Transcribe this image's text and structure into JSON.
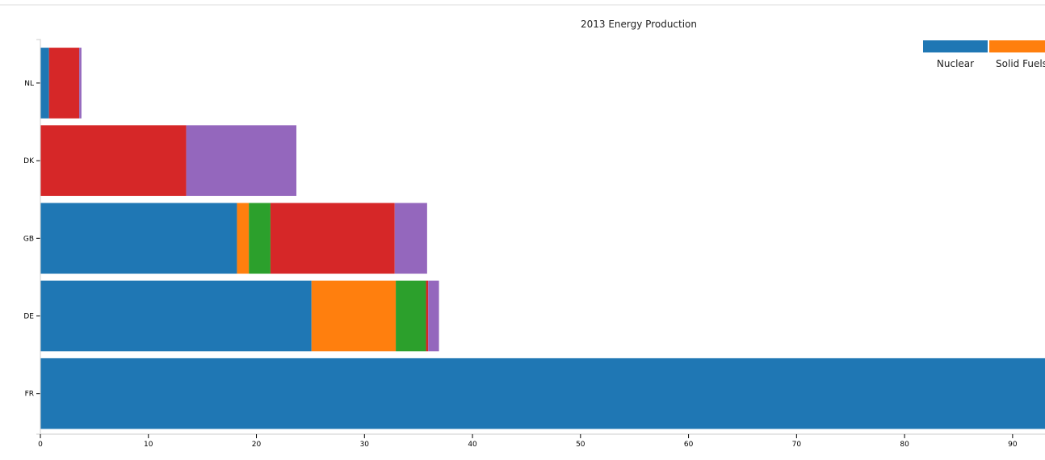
{
  "chart_data": {
    "type": "bar",
    "orientation": "horizontal",
    "stacked": true,
    "title": "2013 Energy Production",
    "categories": [
      "NL",
      "DK",
      "GB",
      "DE",
      "FR"
    ],
    "series": [
      {
        "name": "Nuclear",
        "color": "#1f77b4",
        "values": [
          0.8,
          0.0,
          18.2,
          25.1,
          93.0
        ]
      },
      {
        "name": "Solid Fuels",
        "color": "#ff7f0e",
        "values": [
          0.0,
          0.0,
          1.1,
          7.8,
          0.0
        ]
      },
      {
        "name": "",
        "color": "#2ca02c",
        "values": [
          0.0,
          0.0,
          2.0,
          2.8,
          0.0
        ]
      },
      {
        "name": "",
        "color": "#d62728",
        "values": [
          2.8,
          13.5,
          11.5,
          0.2,
          0.0
        ]
      },
      {
        "name": "",
        "color": "#9467bd",
        "values": [
          0.2,
          10.2,
          3.0,
          1.0,
          0.0
        ]
      }
    ],
    "xlim": [
      0,
      93
    ],
    "xticks": [
      0,
      10,
      20,
      30,
      40,
      50,
      60,
      70,
      80,
      90
    ],
    "xlabel": "",
    "ylabel": "",
    "grid": false,
    "legend": "top-right"
  }
}
